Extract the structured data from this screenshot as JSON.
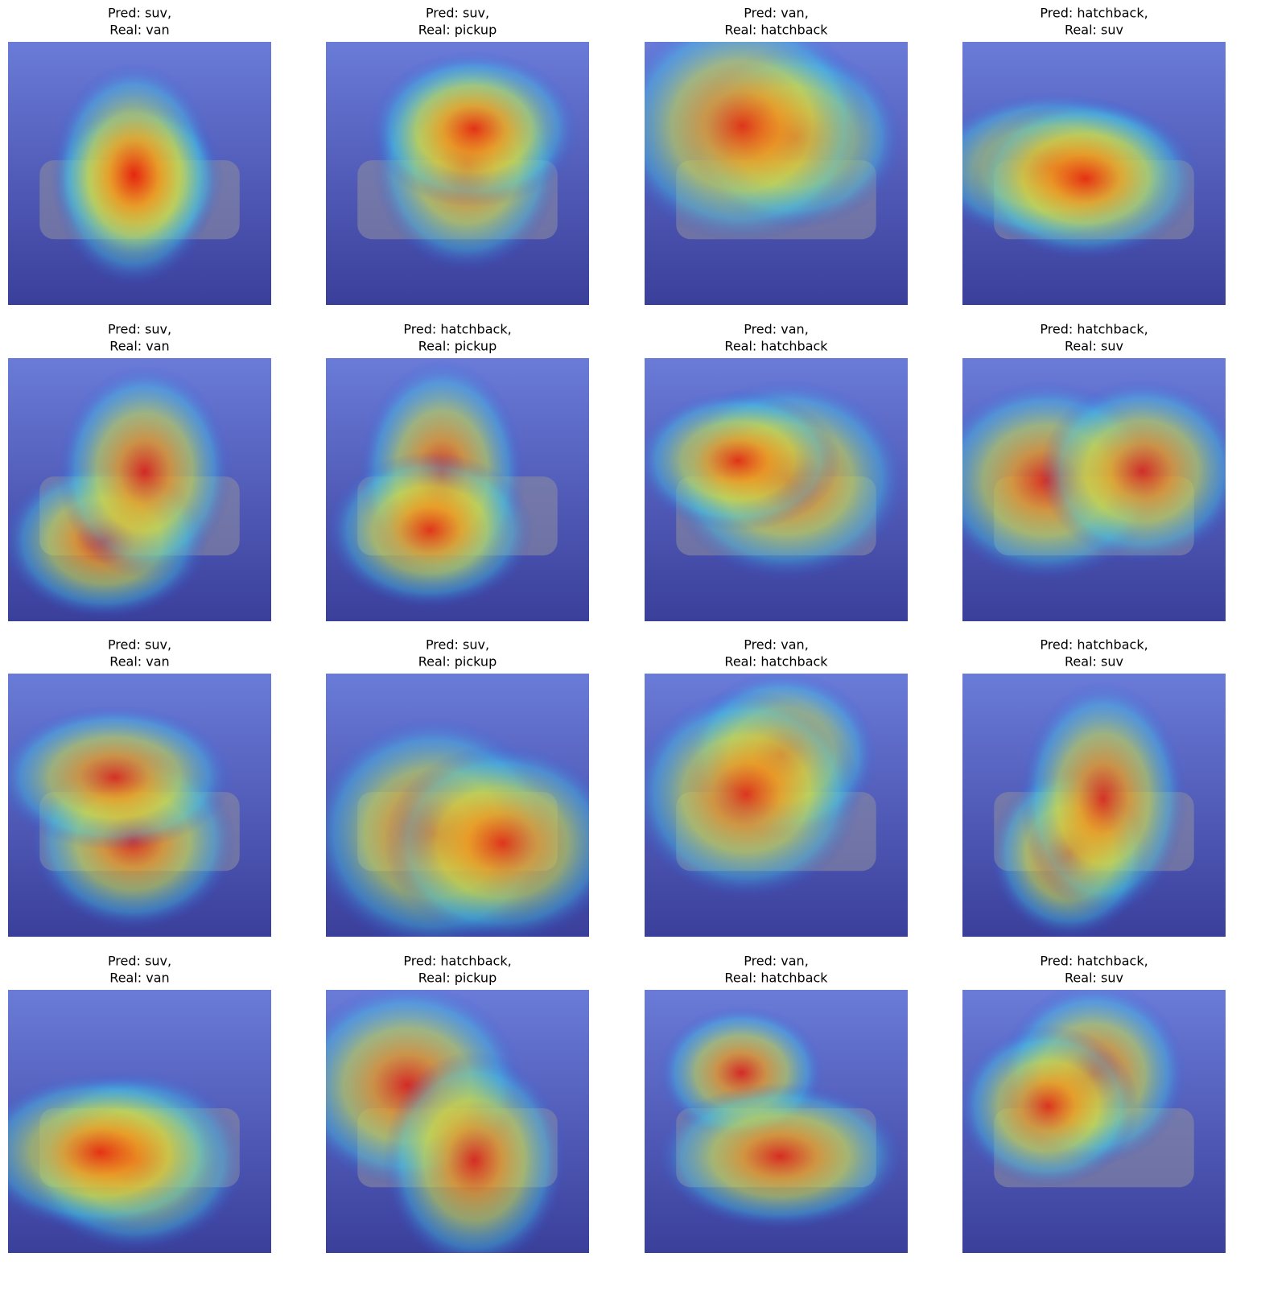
{
  "panels": [
    {
      "pred": "Pred: suv,",
      "real": "Real: van"
    },
    {
      "pred": "Pred: suv,",
      "real": "Real: pickup"
    },
    {
      "pred": "Pred: van,",
      "real": "Real: hatchback"
    },
    {
      "pred": "Pred: hatchback,",
      "real": "Real: suv"
    },
    {
      "pred": "Pred: suv,",
      "real": "Real: van"
    },
    {
      "pred": "Pred: hatchback,",
      "real": "Real: pickup"
    },
    {
      "pred": "Pred: van,",
      "real": "Real: hatchback"
    },
    {
      "pred": "Pred: hatchback,",
      "real": "Real: suv"
    },
    {
      "pred": "Pred: suv,",
      "real": "Real: van"
    },
    {
      "pred": "Pred: suv,",
      "real": "Real: pickup"
    },
    {
      "pred": "Pred: van,",
      "real": "Real: hatchback"
    },
    {
      "pred": "Pred: hatchback,",
      "real": "Real: suv"
    },
    {
      "pred": "Pred: suv,",
      "real": "Real: van"
    },
    {
      "pred": "Pred: hatchback,",
      "real": "Real: pickup"
    },
    {
      "pred": "Pred: van,",
      "real": "Real: hatchback"
    },
    {
      "pred": "Pred: hatchback,",
      "real": "Real: suv"
    }
  ]
}
